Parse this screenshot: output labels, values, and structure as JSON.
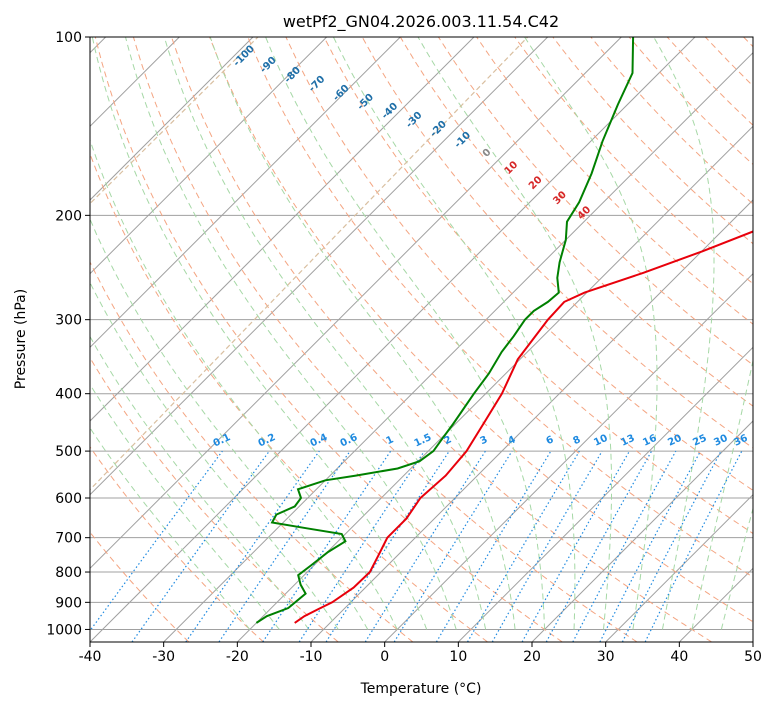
{
  "chart_data": {
    "type": "skew-t log-p diagram",
    "title": "wetPf2_GN04.2026.003.11.54.C42",
    "xlabel": "Temperature (°C)",
    "ylabel": "Pressure (hPa)",
    "xlim": [
      -40,
      50
    ],
    "ylim_hPa": [
      1050,
      100
    ],
    "x_ticks": [
      -40,
      -30,
      -20,
      -10,
      0,
      10,
      20,
      30,
      40,
      50
    ],
    "y_ticks": [
      100,
      200,
      300,
      400,
      500,
      600,
      700,
      800,
      900,
      1000
    ],
    "colors": {
      "temperature": "#e8000b",
      "dewpoint": "#008000",
      "isotherm": "#a0a0a0",
      "dry_adiabat": "#f4a582",
      "moist_adiabat": "#a6d8a6",
      "mixing_ratio": "#1f8ae0",
      "isotherm_label": "#1f6fa8",
      "dry_label": "#d62728",
      "curve_axis": "#d9bfa0"
    },
    "isotherm_labels": [
      "-100",
      "-90",
      "-80",
      "-70",
      "-60",
      "-50",
      "-40",
      "-30",
      "-20",
      "-10",
      "0",
      "10",
      "20",
      "30",
      "40"
    ],
    "mixing_ratio_labels": [
      "0.1",
      "0.2",
      "0.4",
      "0.6",
      "1",
      "1.5",
      "2",
      "3",
      "4",
      "6",
      "8",
      "10",
      "13",
      "16",
      "20",
      "25",
      "30",
      "36"
    ],
    "temperature_profile": [
      {
        "p": 975,
        "t": -14.8
      },
      {
        "p": 950,
        "t": -14.4
      },
      {
        "p": 925,
        "t": -13.5
      },
      {
        "p": 900,
        "t": -12.5
      },
      {
        "p": 850,
        "t": -11.6
      },
      {
        "p": 800,
        "t": -11.5
      },
      {
        "p": 750,
        "t": -12.6
      },
      {
        "p": 700,
        "t": -13.8
      },
      {
        "p": 650,
        "t": -13.8
      },
      {
        "p": 600,
        "t": -14.7
      },
      {
        "p": 550,
        "t": -14.3
      },
      {
        "p": 500,
        "t": -14.8
      },
      {
        "p": 450,
        "t": -16.2
      },
      {
        "p": 400,
        "t": -17.8
      },
      {
        "p": 350,
        "t": -20.3
      },
      {
        "p": 300,
        "t": -21.6
      },
      {
        "p": 280,
        "t": -21.8
      },
      {
        "p": 270,
        "t": -20.3
      },
      {
        "p": 250,
        "t": -15.0
      },
      {
        "p": 230,
        "t": -9.9
      },
      {
        "p": 200,
        "t": -2.3
      },
      {
        "p": 180,
        "t": 3.7
      },
      {
        "p": 160,
        "t": 9.3
      },
      {
        "p": 150,
        "t": 13.0
      },
      {
        "p": 130,
        "t": 16.9
      },
      {
        "p": 120,
        "t": 18.7
      },
      {
        "p": 110,
        "t": 21.4
      },
      {
        "p": 100,
        "t": 24.6
      }
    ],
    "dewpoint_profile": [
      {
        "p": 975,
        "t": -20.0
      },
      {
        "p": 950,
        "t": -19.5
      },
      {
        "p": 920,
        "t": -17.7
      },
      {
        "p": 870,
        "t": -17.3
      },
      {
        "p": 840,
        "t": -19.2
      },
      {
        "p": 810,
        "t": -20.8
      },
      {
        "p": 780,
        "t": -20.4
      },
      {
        "p": 740,
        "t": -19.9
      },
      {
        "p": 710,
        "t": -19.0
      },
      {
        "p": 690,
        "t": -20.5
      },
      {
        "p": 675,
        "t": -26.0
      },
      {
        "p": 660,
        "t": -31.5
      },
      {
        "p": 640,
        "t": -32.0
      },
      {
        "p": 620,
        "t": -30.6
      },
      {
        "p": 600,
        "t": -30.9
      },
      {
        "p": 580,
        "t": -32.5
      },
      {
        "p": 560,
        "t": -30.0
      },
      {
        "p": 550,
        "t": -26.5
      },
      {
        "p": 535,
        "t": -21.8
      },
      {
        "p": 520,
        "t": -19.8
      },
      {
        "p": 500,
        "t": -19.3
      },
      {
        "p": 480,
        "t": -19.7
      },
      {
        "p": 450,
        "t": -20.3
      },
      {
        "p": 400,
        "t": -21.6
      },
      {
        "p": 370,
        "t": -22.3
      },
      {
        "p": 340,
        "t": -23.5
      },
      {
        "p": 320,
        "t": -24.0
      },
      {
        "p": 300,
        "t": -24.7
      },
      {
        "p": 290,
        "t": -24.7
      },
      {
        "p": 280,
        "t": -24.0
      },
      {
        "p": 270,
        "t": -23.8
      },
      {
        "p": 255,
        "t": -26.0
      },
      {
        "p": 240,
        "t": -27.8
      },
      {
        "p": 220,
        "t": -30.0
      },
      {
        "p": 205,
        "t": -32.3
      },
      {
        "p": 190,
        "t": -33.3
      },
      {
        "p": 170,
        "t": -35.5
      },
      {
        "p": 150,
        "t": -38.4
      },
      {
        "p": 130,
        "t": -41.3
      },
      {
        "p": 115,
        "t": -43.6
      },
      {
        "p": 100,
        "t": -48.4
      }
    ]
  }
}
